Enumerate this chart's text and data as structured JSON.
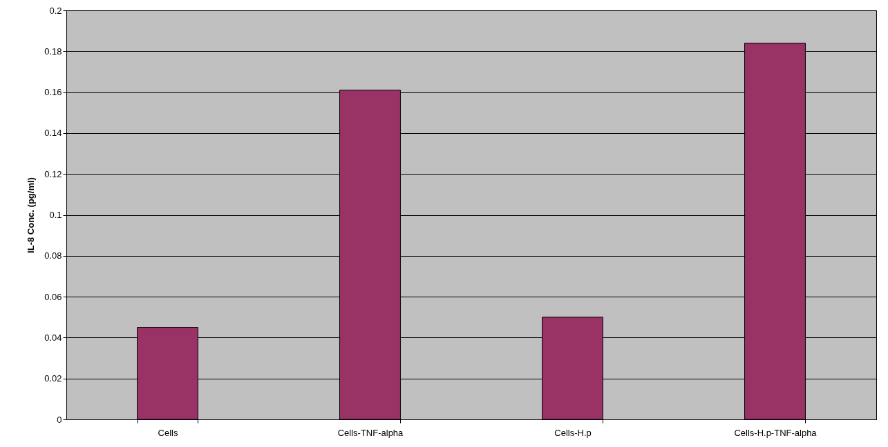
{
  "chart_data": {
    "type": "bar",
    "ylabel": "IL-8 Conc. (pg/ml)",
    "categories": [
      "Cells",
      "Cells-TNF-alpha",
      "Cells-H.p",
      "Cells-H.p-TNF-alpha"
    ],
    "values": [
      0.045,
      0.161,
      0.05,
      0.184
    ],
    "color": "#993366",
    "ylim": [
      0,
      0.2
    ],
    "yticks": [
      0,
      0.02,
      0.04,
      0.06,
      0.08,
      0.1,
      0.12,
      0.14,
      0.16,
      0.18,
      0.2
    ],
    "grid": "y"
  }
}
